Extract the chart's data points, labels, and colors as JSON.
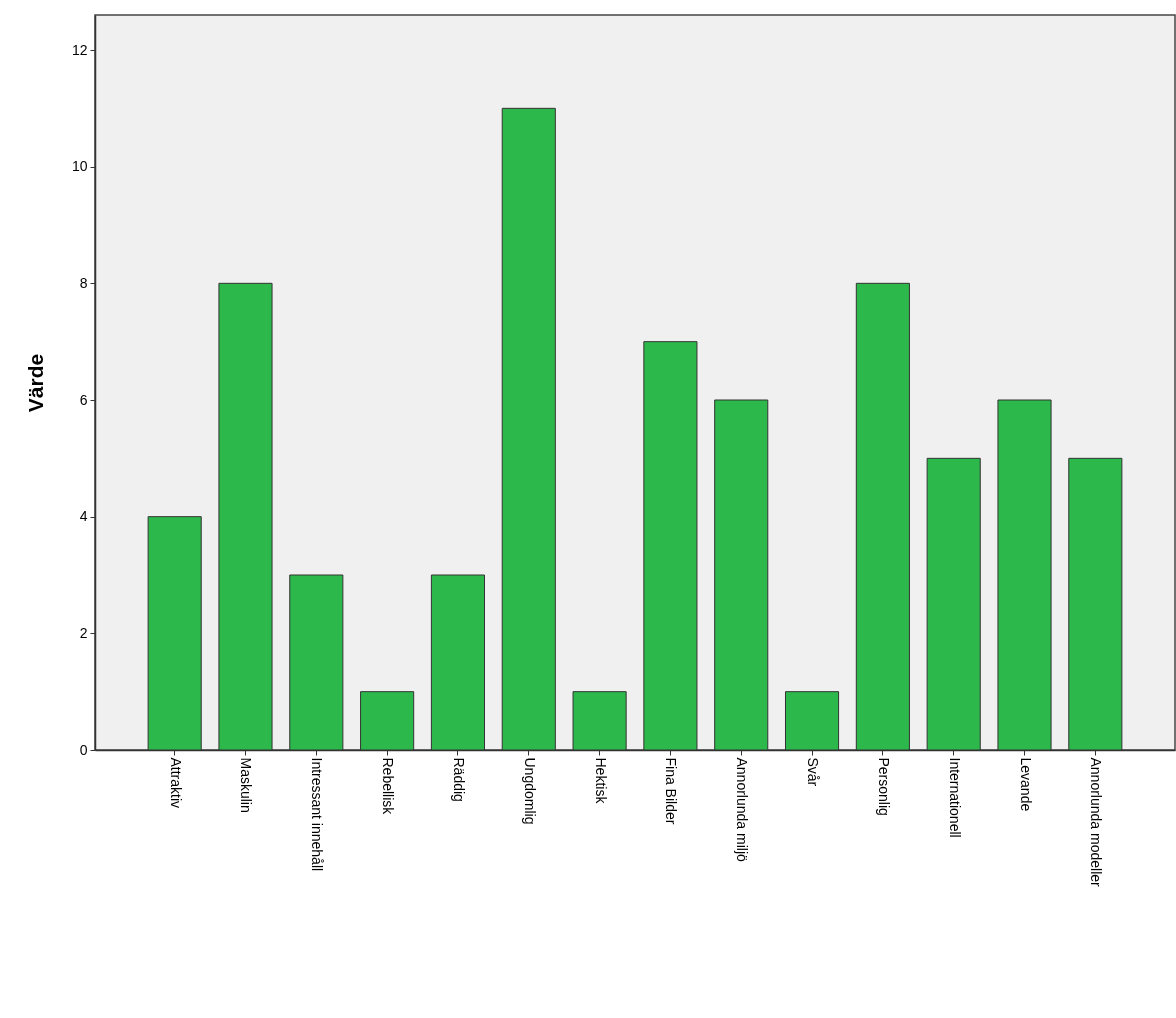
{
  "chart_data": {
    "type": "bar",
    "ylabel": "Värde",
    "categories": [
      "Attraktiv",
      "Maskulin",
      "Intressant innehåll",
      "Rebellisk",
      "Räddig",
      "Ungdomlig",
      "Hektisk",
      "Fina Bilder",
      "Annorlunda miljö",
      "Svår",
      "Personlig",
      "Internationell",
      "Levande",
      "Annorlunda modeller"
    ],
    "values": [
      4,
      8,
      3,
      1,
      3,
      11,
      1,
      7,
      6,
      1,
      8,
      5,
      6,
      5
    ],
    "color": "#2db84b",
    "ylim": [
      0,
      12.6
    ],
    "yticks": [
      0,
      2,
      4,
      6,
      8,
      10,
      12
    ],
    "grid": false
  }
}
